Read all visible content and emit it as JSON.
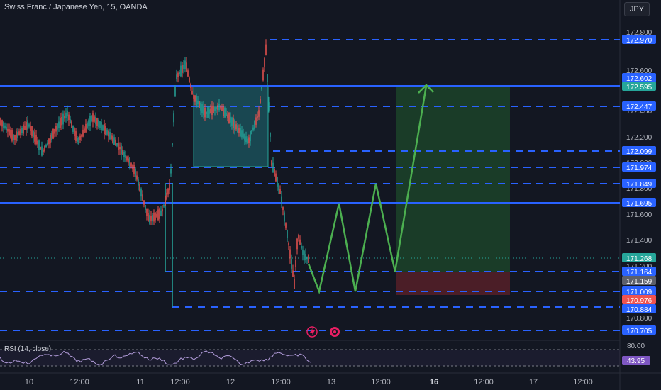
{
  "header": {
    "title": "Swiss Franc / Japanese Yen, 15, OANDA",
    "currency": "JPY"
  },
  "price_axis": {
    "ticks": [
      "172.800",
      "172.600",
      "172.400",
      "172.200",
      "172.000",
      "171.800",
      "171.600",
      "171.400",
      "171.200",
      "171.000",
      "170.800"
    ],
    "labels": [
      {
        "text": "172.970",
        "kind": "line"
      },
      {
        "text": "172.602",
        "kind": "line"
      },
      {
        "text": "172.595",
        "kind": "green"
      },
      {
        "text": "172.447",
        "kind": "line"
      },
      {
        "text": "172.099",
        "kind": "line"
      },
      {
        "text": "171.974",
        "kind": "line"
      },
      {
        "text": "171.849",
        "kind": "line"
      },
      {
        "text": "171.695",
        "kind": "line"
      },
      {
        "text": "171.268",
        "kind": "green"
      },
      {
        "text": "171.164",
        "kind": "line"
      },
      {
        "text": "171.159",
        "kind": "grey"
      },
      {
        "text": "171.009",
        "kind": "line"
      },
      {
        "text": "170.976",
        "kind": "red"
      },
      {
        "text": "170.884",
        "kind": "line"
      },
      {
        "text": "170.705",
        "kind": "line"
      }
    ]
  },
  "time_axis": [
    "10",
    "12:00",
    "11",
    "12:00",
    "12",
    "12:00",
    "13",
    "12:00",
    "16",
    "12:00",
    "17",
    "12:00"
  ],
  "rsi": {
    "label": "RSI (14, close)",
    "axis_label": "80.00",
    "value": "43.95"
  },
  "colors": {
    "line_blue": "#2962ff",
    "up": "#26a69a",
    "down": "#ef5350",
    "path": "#4caf50"
  },
  "icons": [
    "lightning-icon",
    "record-icon"
  ]
}
